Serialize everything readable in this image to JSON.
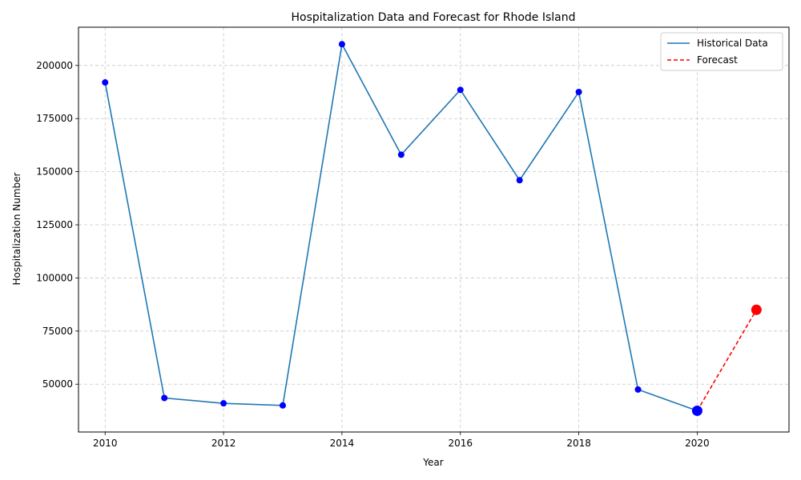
{
  "chart_data": {
    "type": "line",
    "title": "Hospitalization Data and Forecast for Rhode Island",
    "xlabel": "Year",
    "ylabel": "Hospitalization Number",
    "xlim": [
      2009.55,
      2021.55
    ],
    "ylim": [
      27500,
      218000
    ],
    "x_ticks": [
      2010,
      2012,
      2014,
      2016,
      2018,
      2020
    ],
    "y_ticks": [
      50000,
      75000,
      100000,
      125000,
      150000,
      175000,
      200000
    ],
    "grid": true,
    "legend_position": "top-right",
    "series": [
      {
        "name": "Historical Data",
        "color": "#1f77b4",
        "marker_color": "#0000ff",
        "line_style": "solid",
        "x": [
          2010,
          2011,
          2012,
          2013,
          2014,
          2015,
          2016,
          2017,
          2018,
          2019,
          2020
        ],
        "y": [
          192000,
          43500,
          41000,
          40000,
          210000,
          158000,
          188500,
          146000,
          187500,
          47500,
          37500
        ]
      },
      {
        "name": "Forecast",
        "color": "#ff0000",
        "marker_color": "#ff0000",
        "line_style": "dashed",
        "x": [
          2020,
          2021
        ],
        "y": [
          37500,
          85000
        ]
      }
    ],
    "highlighted_points": [
      {
        "x": 2020,
        "y": 37500,
        "color": "#0000ff"
      },
      {
        "x": 2021,
        "y": 85000,
        "color": "#ff0000"
      }
    ]
  }
}
